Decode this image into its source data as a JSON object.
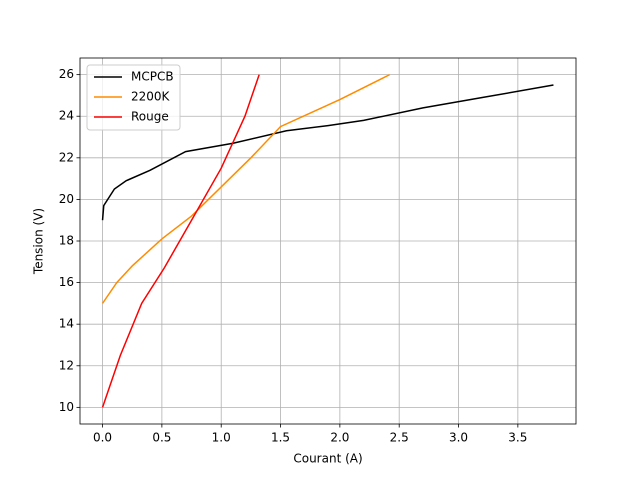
{
  "chart_data": {
    "type": "line",
    "xlabel": "Courant (A)",
    "ylabel": "Tension (V)",
    "series": [
      {
        "name": "MCPCB",
        "color": "#000000",
        "x": [
          0,
          0.01,
          0.1,
          0.2,
          0.4,
          0.7,
          1.1,
          1.55,
          1.9,
          2.2,
          2.7,
          3.2,
          3.8
        ],
        "values": [
          19.0,
          19.7,
          20.5,
          20.9,
          21.4,
          22.3,
          22.7,
          23.3,
          23.55,
          23.8,
          24.4,
          24.9,
          25.5
        ]
      },
      {
        "name": "2200K",
        "color": "#ff8c00",
        "x": [
          0,
          0.12,
          0.25,
          0.5,
          0.75,
          1.0,
          1.25,
          1.5,
          2.0,
          2.42
        ],
        "values": [
          15.0,
          16.0,
          16.8,
          18.1,
          19.2,
          20.6,
          22.0,
          23.5,
          24.8,
          26.0
        ]
      },
      {
        "name": "Rouge",
        "color": "#ff0000",
        "x": [
          0,
          0.15,
          0.33,
          0.52,
          0.75,
          1.0,
          1.2,
          1.32
        ],
        "values": [
          10.0,
          12.5,
          15.0,
          16.7,
          19.0,
          21.5,
          24.0,
          26.0
        ]
      }
    ],
    "xlim": [
      -0.19,
      3.99
    ],
    "ylim": [
      9.2,
      26.8
    ],
    "xticks": [
      {
        "value": 0,
        "label": "0.0"
      },
      {
        "value": 0.5,
        "label": "0.5"
      },
      {
        "value": 1,
        "label": "1.0"
      },
      {
        "value": 1.5,
        "label": "1.5"
      },
      {
        "value": 2,
        "label": "2.0"
      },
      {
        "value": 2.5,
        "label": "2.5"
      },
      {
        "value": 3,
        "label": "3.0"
      },
      {
        "value": 3.5,
        "label": "3.5"
      }
    ],
    "yticks": [
      10,
      12,
      14,
      16,
      18,
      20,
      22,
      24,
      26
    ],
    "grid": true,
    "legend": "upper-left"
  }
}
